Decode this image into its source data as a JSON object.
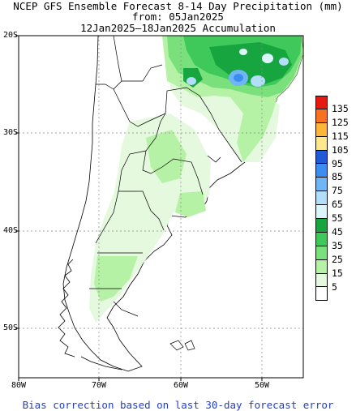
{
  "title": {
    "line1": "NCEP GFS Ensemble Forecast 8-14 Day Precipitation (mm)",
    "line2": "from: 05Jan2025",
    "line3": "12Jan2025–18Jan2025 Accumulation"
  },
  "lat_labels": [
    "20S",
    "30S",
    "40S",
    "50S"
  ],
  "lon_labels": [
    "80W",
    "70W",
    "60W",
    "50W"
  ],
  "legend": {
    "items": [
      {
        "value": "135",
        "color": "#e8190f"
      },
      {
        "value": "125",
        "color": "#f7711f"
      },
      {
        "value": "115",
        "color": "#fdb53a"
      },
      {
        "value": "105",
        "color": "#fde88b"
      },
      {
        "value": "95",
        "color": "#1f5ad8"
      },
      {
        "value": "85",
        "color": "#3b8ef0"
      },
      {
        "value": "75",
        "color": "#70b6f5"
      },
      {
        "value": "65",
        "color": "#b3defa"
      },
      {
        "value": "55",
        "color": "#dcf5fb"
      },
      {
        "value": "45",
        "color": "#17a53f"
      },
      {
        "value": "35",
        "color": "#3fc95a"
      },
      {
        "value": "25",
        "color": "#79e07b"
      },
      {
        "value": "15",
        "color": "#b6f2a6"
      },
      {
        "value": "5",
        "color": "#e4f9de"
      },
      {
        "value": "",
        "color": "#ffffff"
      }
    ]
  },
  "footer": "Bias correction based on last 30-day forecast error"
}
